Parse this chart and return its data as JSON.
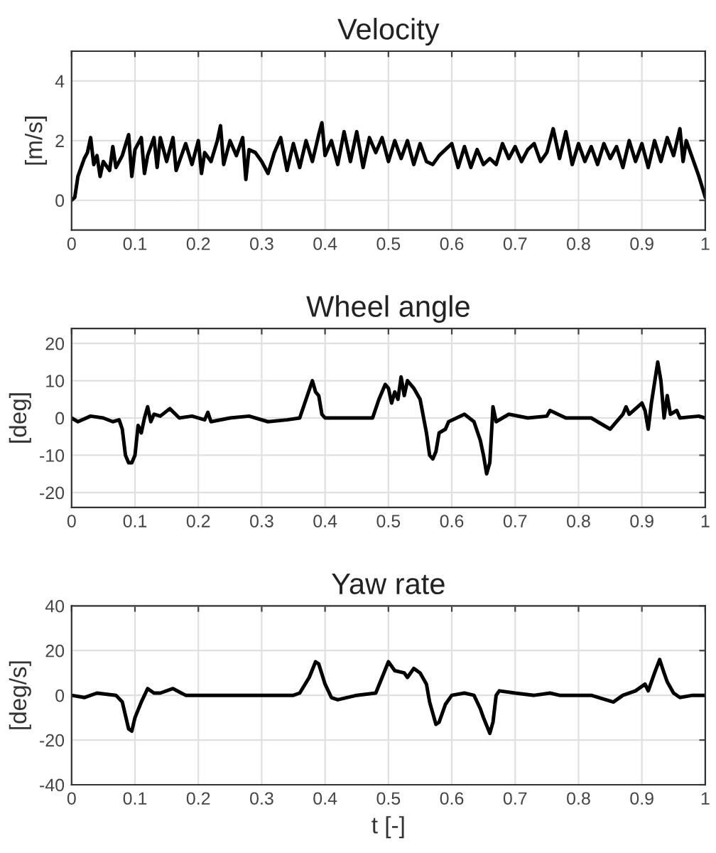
{
  "chart_data": [
    {
      "type": "line",
      "title": "Velocity",
      "ylabel": "[m/s]",
      "xlim": [
        0,
        1
      ],
      "xticks": [
        0,
        0.1,
        0.2,
        0.3,
        0.4,
        0.5,
        0.6,
        0.7,
        0.8,
        0.9,
        1
      ],
      "ylim": [
        -1,
        5
      ],
      "yticks": [
        0,
        2,
        4
      ],
      "grid": true,
      "series": [
        {
          "color": "#000000",
          "x": [
            0,
            0.005,
            0.01,
            0.02,
            0.025,
            0.03,
            0.035,
            0.04,
            0.045,
            0.05,
            0.06,
            0.065,
            0.07,
            0.08,
            0.09,
            0.095,
            0.1,
            0.11,
            0.115,
            0.12,
            0.13,
            0.135,
            0.14,
            0.15,
            0.16,
            0.165,
            0.18,
            0.19,
            0.2,
            0.205,
            0.21,
            0.22,
            0.23,
            0.235,
            0.24,
            0.25,
            0.26,
            0.27,
            0.275,
            0.28,
            0.29,
            0.3,
            0.31,
            0.32,
            0.33,
            0.34,
            0.35,
            0.36,
            0.37,
            0.38,
            0.39,
            0.395,
            0.4,
            0.41,
            0.42,
            0.43,
            0.44,
            0.45,
            0.46,
            0.47,
            0.48,
            0.49,
            0.5,
            0.51,
            0.52,
            0.53,
            0.54,
            0.55,
            0.56,
            0.57,
            0.58,
            0.59,
            0.6,
            0.61,
            0.62,
            0.63,
            0.64,
            0.65,
            0.66,
            0.67,
            0.68,
            0.69,
            0.7,
            0.71,
            0.72,
            0.73,
            0.74,
            0.75,
            0.76,
            0.77,
            0.78,
            0.79,
            0.8,
            0.81,
            0.82,
            0.83,
            0.84,
            0.85,
            0.86,
            0.87,
            0.88,
            0.89,
            0.9,
            0.91,
            0.92,
            0.93,
            0.94,
            0.95,
            0.96,
            0.965,
            0.97,
            0.98,
            0.99,
            1
          ],
          "values": [
            0,
            0.1,
            0.8,
            1.4,
            1.6,
            2.1,
            1.2,
            1.5,
            0.8,
            1.3,
            1.0,
            1.8,
            1.1,
            1.5,
            2.2,
            0.8,
            1.7,
            2.1,
            0.9,
            1.5,
            2.1,
            1.1,
            2.1,
            1.3,
            2.1,
            1.0,
            1.9,
            1.2,
            2.0,
            0.9,
            1.6,
            1.3,
            2.0,
            2.5,
            1.2,
            2.0,
            1.5,
            2.1,
            0.7,
            1.7,
            1.6,
            1.3,
            0.9,
            1.6,
            2.1,
            1.0,
            1.9,
            1.1,
            2.0,
            1.3,
            2.2,
            2.6,
            1.5,
            2.0,
            1.2,
            2.3,
            1.3,
            2.3,
            1.1,
            2.1,
            1.6,
            2.1,
            1.3,
            2.0,
            1.4,
            2.0,
            1.2,
            1.9,
            1.3,
            1.2,
            1.5,
            1.7,
            1.9,
            1.1,
            1.8,
            1.1,
            1.7,
            1.2,
            1.4,
            1.2,
            1.9,
            1.4,
            1.8,
            1.3,
            1.7,
            1.9,
            1.3,
            1.6,
            2.4,
            1.4,
            2.3,
            1.2,
            1.9,
            1.3,
            1.8,
            1.2,
            1.9,
            1.4,
            1.8,
            1.1,
            2.0,
            1.3,
            1.9,
            1.1,
            2.0,
            1.3,
            2.1,
            1.5,
            2.4,
            1.3,
            2.0,
            1.4,
            0.8,
            0.1
          ]
        }
      ]
    },
    {
      "type": "line",
      "title": "Wheel angle",
      "ylabel": "[deg]",
      "xlim": [
        0,
        1
      ],
      "xticks": [
        0,
        0.1,
        0.2,
        0.3,
        0.4,
        0.5,
        0.6,
        0.7,
        0.8,
        0.9,
        1
      ],
      "ylim": [
        -24,
        24
      ],
      "yticks": [
        -20,
        -10,
        0,
        10,
        20
      ],
      "grid": true,
      "series": [
        {
          "color": "#000000",
          "x": [
            0,
            0.01,
            0.03,
            0.05,
            0.065,
            0.075,
            0.08,
            0.085,
            0.09,
            0.095,
            0.1,
            0.105,
            0.11,
            0.115,
            0.12,
            0.125,
            0.13,
            0.14,
            0.155,
            0.17,
            0.19,
            0.21,
            0.215,
            0.22,
            0.25,
            0.28,
            0.31,
            0.34,
            0.36,
            0.37,
            0.38,
            0.385,
            0.39,
            0.395,
            0.4,
            0.45,
            0.475,
            0.485,
            0.495,
            0.5,
            0.505,
            0.51,
            0.515,
            0.52,
            0.525,
            0.53,
            0.54,
            0.55,
            0.56,
            0.565,
            0.57,
            0.575,
            0.58,
            0.59,
            0.595,
            0.62,
            0.635,
            0.645,
            0.65,
            0.655,
            0.66,
            0.665,
            0.67,
            0.69,
            0.72,
            0.75,
            0.755,
            0.78,
            0.82,
            0.84,
            0.85,
            0.86,
            0.87,
            0.875,
            0.88,
            0.9,
            0.905,
            0.91,
            0.915,
            0.925,
            0.93,
            0.935,
            0.94,
            0.945,
            0.955,
            0.96,
            0.99,
            1
          ],
          "values": [
            0,
            -1,
            0.5,
            0,
            -1,
            -0.5,
            -3,
            -10,
            -12,
            -12,
            -10,
            -2,
            -4,
            0,
            3,
            -1,
            1,
            0.5,
            2.5,
            0,
            0.5,
            -0.5,
            1.5,
            -1,
            0,
            0.5,
            -1,
            -0.5,
            0,
            5,
            10,
            7,
            6,
            1,
            0,
            0,
            0,
            5,
            9,
            8,
            4,
            7,
            5,
            11,
            6,
            10,
            8,
            5,
            -4,
            -10,
            -11,
            -9,
            -4,
            -3,
            -1,
            1,
            -1,
            -6,
            -10,
            -15,
            -12,
            3,
            -1,
            1,
            0,
            0.5,
            2,
            0,
            0,
            -2,
            -3,
            -1,
            1,
            3,
            1,
            4,
            2,
            -3,
            4,
            15,
            10,
            0,
            6,
            1,
            2,
            0,
            0.5,
            0
          ]
        }
      ]
    },
    {
      "type": "line",
      "title": "Yaw rate",
      "ylabel": "[deg/s]",
      "xlabel": "t [-]",
      "xlim": [
        0,
        1
      ],
      "xticks": [
        0,
        0.1,
        0.2,
        0.3,
        0.4,
        0.5,
        0.6,
        0.7,
        0.8,
        0.9,
        1
      ],
      "ylim": [
        -40,
        40
      ],
      "yticks": [
        -40,
        -20,
        0,
        20,
        40
      ],
      "grid": true,
      "series": [
        {
          "color": "#000000",
          "x": [
            0,
            0.02,
            0.04,
            0.07,
            0.08,
            0.09,
            0.095,
            0.1,
            0.11,
            0.12,
            0.13,
            0.14,
            0.16,
            0.18,
            0.25,
            0.3,
            0.35,
            0.36,
            0.375,
            0.385,
            0.39,
            0.4,
            0.41,
            0.42,
            0.45,
            0.48,
            0.49,
            0.5,
            0.51,
            0.525,
            0.53,
            0.54,
            0.55,
            0.56,
            0.565,
            0.575,
            0.58,
            0.59,
            0.6,
            0.62,
            0.635,
            0.645,
            0.65,
            0.66,
            0.665,
            0.67,
            0.675,
            0.7,
            0.73,
            0.755,
            0.77,
            0.82,
            0.855,
            0.87,
            0.89,
            0.905,
            0.91,
            0.92,
            0.928,
            0.935,
            0.94,
            0.95,
            0.96,
            0.98,
            1
          ],
          "values": [
            0,
            -1,
            1,
            0,
            -3,
            -15,
            -16,
            -10,
            -3,
            3,
            1,
            1,
            3,
            0,
            0,
            0,
            0,
            1,
            8,
            15,
            14,
            5,
            -1,
            -2,
            0,
            1,
            8,
            15,
            11,
            10,
            8,
            12,
            10,
            5,
            -3,
            -13,
            -12,
            -4,
            0,
            1,
            0,
            -6,
            -10,
            -17,
            -12,
            0,
            2,
            1,
            0,
            1,
            0,
            0,
            -3,
            0,
            2,
            5,
            2,
            10,
            16,
            10,
            6,
            1,
            -1,
            0,
            0
          ]
        }
      ]
    }
  ]
}
